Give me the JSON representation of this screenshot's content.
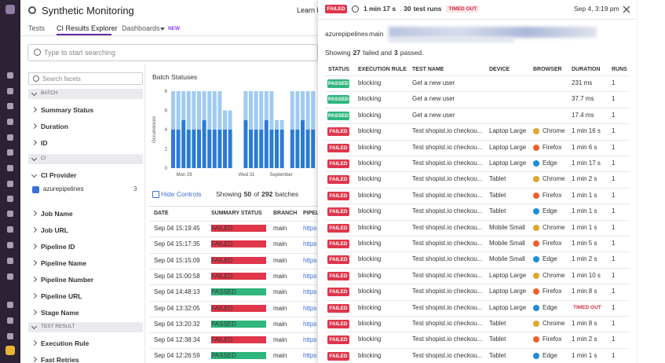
{
  "header": {
    "title": "Synthetic Monitoring",
    "learn": "Learn M"
  },
  "tabs": [
    "Tests",
    "CI Results Explorer",
    "Dashboards"
  ],
  "new_badge": "NEW",
  "search_placeholder": "Type to start searching",
  "facets": {
    "search_placeholder": "Search facets",
    "groups": [
      {
        "section": "BATCH",
        "items": [
          {
            "label": "Summary Status"
          },
          {
            "label": "Duration"
          },
          {
            "label": "ID"
          }
        ]
      },
      {
        "section": "CI",
        "items": [
          {
            "label": "CI Provider",
            "options": [
              {
                "label": "azurepipelines",
                "count": 3
              }
            ]
          },
          {
            "label": "Job Name"
          },
          {
            "label": "Job URL"
          },
          {
            "label": "Pipeline ID"
          },
          {
            "label": "Pipeline Name"
          },
          {
            "label": "Pipeline Number"
          },
          {
            "label": "Pipeline URL"
          },
          {
            "label": "Stage Name"
          }
        ]
      },
      {
        "section": "TEST RESULT",
        "items": [
          {
            "label": "Execution Rule"
          },
          {
            "label": "Fast Retries"
          }
        ]
      }
    ]
  },
  "chart_data": {
    "type": "bar",
    "title": "Batch Statuses",
    "y_label": "Occurrences",
    "stacked": true,
    "categories": [
      null,
      "Mon 29",
      null,
      null,
      null,
      null,
      null,
      null,
      null,
      null,
      null,
      null,
      null,
      "Wed 31",
      null,
      null,
      null,
      null,
      null,
      "September",
      null,
      null,
      null,
      null,
      null,
      null,
      null,
      null
    ],
    "series": [
      {
        "color": "#2a7bd4",
        "values": [
          4,
          4,
          5,
          4,
          4,
          4,
          5,
          4,
          4,
          4,
          4,
          4,
          0,
          0,
          5,
          4,
          4,
          4,
          5,
          4,
          4,
          4,
          0,
          4,
          4,
          5,
          4,
          4
        ]
      },
      {
        "color": "#9fcbf3",
        "values": [
          4,
          4,
          3,
          4,
          4,
          4,
          3,
          4,
          4,
          4,
          2,
          2,
          0,
          0,
          3,
          4,
          4,
          4,
          3,
          4,
          1,
          1,
          0,
          4,
          4,
          3,
          4,
          4
        ]
      }
    ],
    "ylim": [
      0,
      8
    ],
    "yticks": [
      0,
      2,
      4,
      6,
      8
    ]
  },
  "batches": {
    "hide_controls": "Hide Controls",
    "showing": {
      "prefix": "Showing",
      "shown": 50,
      "of": "of",
      "total": 292,
      "suffix": "batches"
    },
    "columns": [
      "DATE",
      "SUMMARY STATUS",
      "BRANCH",
      "PIPEL"
    ],
    "rows": [
      [
        "Sep 04 15:19:45",
        "FAILED",
        "main",
        "https"
      ],
      [
        "Sep 04 15:17:35",
        "FAILED",
        "main",
        "https"
      ],
      [
        "Sep 04 15:15:09",
        "FAILED",
        "main",
        "https"
      ],
      [
        "Sep 04 15:00:58",
        "FAILED",
        "main",
        "https"
      ],
      [
        "Sep 04 14:48:13",
        "PASSED",
        "main",
        "https"
      ],
      [
        "Sep 04 13:32:05",
        "FAILED",
        "main",
        "https"
      ],
      [
        "Sep 04 13:20:32",
        "PASSED",
        "main",
        "https"
      ],
      [
        "Sep 04 12:38:34",
        "FAILED",
        "main",
        "https"
      ],
      [
        "Sep 04 12:26:59",
        "PASSED",
        "main",
        "https"
      ]
    ]
  },
  "panel": {
    "status": "FAILED",
    "duration": "1 min 17 s",
    "runs": 30,
    "runs_label": "test runs",
    "timed_out": "TIMED OUT",
    "date": "Sep 4, 3:19 pm",
    "pipeline": "azurepipelines",
    "branch": "main",
    "summary": {
      "prefix": "Showing",
      "failed": 27,
      "mid": "failed and",
      "passed": 3,
      "suffix": "passed."
    },
    "columns": [
      "STATUS",
      "EXECUTION RULE",
      "TEST NAME",
      "DEVICE",
      "BROWSER",
      "DURATION",
      "RUNS"
    ],
    "browser_colors": {
      "Chrome": "#e4a52b",
      "Firefox": "#f0612c",
      "Edge": "#1d8fd6"
    },
    "rows": [
      [
        "PASSED",
        "blocking",
        "Get a new user",
        null,
        null,
        "231 ms",
        1
      ],
      [
        "PASSED",
        "blocking",
        "Get a new user",
        null,
        null,
        "37.7 ms",
        1
      ],
      [
        "PASSED",
        "blocking",
        "Get a new user",
        null,
        null,
        "17.4 ms",
        1
      ],
      [
        "FAILED",
        "blocking",
        "Test shopist.io checkou...",
        "Laptop Large",
        "Chrome",
        "1 min 16 s",
        1
      ],
      [
        "FAILED",
        "blocking",
        "Test shopist.io checkou...",
        "Laptop Large",
        "Firefox",
        "1 min 6 s",
        1
      ],
      [
        "FAILED",
        "blocking",
        "Test shopist.io checkou...",
        "Laptop Large",
        "Edge",
        "1 min 17 s",
        1
      ],
      [
        "FAILED",
        "blocking",
        "Test shopist.io checkou...",
        "Tablet",
        "Chrome",
        "1 min 2 s",
        1
      ],
      [
        "FAILED",
        "blocking",
        "Test shopist.io checkou...",
        "Tablet",
        "Firefox",
        "1 min 1 s",
        1
      ],
      [
        "FAILED",
        "blocking",
        "Test shopist.io checkou...",
        "Tablet",
        "Edge",
        "1 min 1 s",
        1
      ],
      [
        "FAILED",
        "blocking",
        "Test shopist.io checkou...",
        "Mobile Small",
        "Chrome",
        "1 min 1 s",
        1
      ],
      [
        "FAILED",
        "blocking",
        "Test shopist.io checkou...",
        "Mobile Small",
        "Firefox",
        "1 min 5 s",
        1
      ],
      [
        "FAILED",
        "blocking",
        "Test shopist.io checkou...",
        "Mobile Small",
        "Edge",
        "1 min 2 s",
        1
      ],
      [
        "FAILED",
        "blocking",
        "Test shopist.io checkou...",
        "Laptop Large",
        "Chrome",
        "1 min 10 s",
        1
      ],
      [
        "FAILED",
        "blocking",
        "Test shopist.io checkou...",
        "Laptop Large",
        "Firefox",
        "1 min 8 s",
        1
      ],
      [
        "FAILED",
        "blocking",
        "Test shopist.io checkou...",
        "Laptop Large",
        "Edge",
        "TIMED OUT",
        1
      ],
      [
        "FAILED",
        "blocking",
        "Test shopist.io checkou...",
        "Tablet",
        "Chrome",
        "1 min 8 s",
        1
      ],
      [
        "FAILED",
        "blocking",
        "Test shopist.io checkou...",
        "Tablet",
        "Firefox",
        "1 min 2 s",
        1
      ],
      [
        "FAILED",
        "blocking",
        "Test shopist.io checkou...",
        "Tablet",
        "Edge",
        "1 min 1 s",
        1
      ]
    ]
  }
}
